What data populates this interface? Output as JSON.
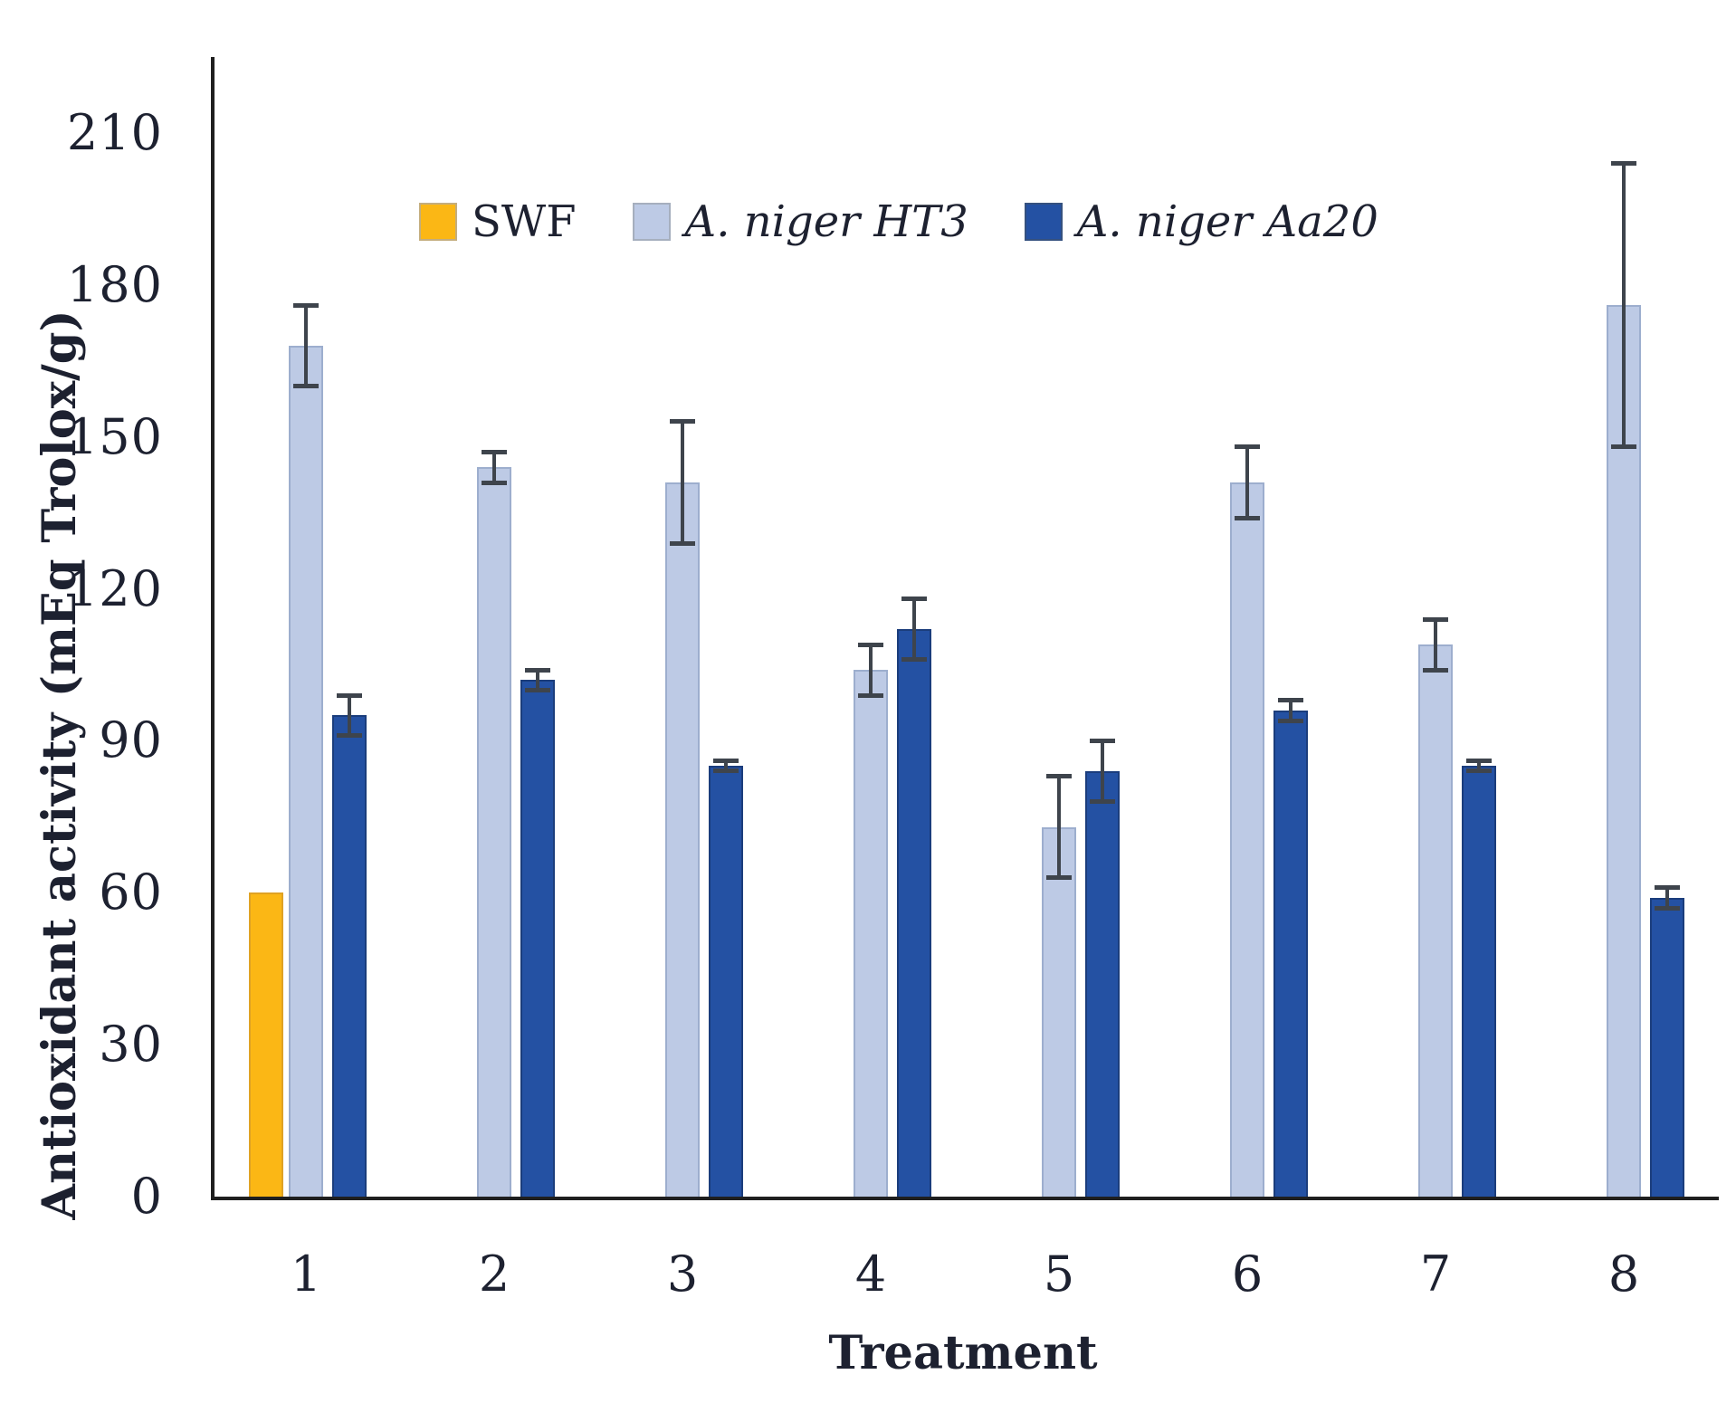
{
  "figure": {
    "y_axis_title": "Antioxidant activity (mEq Trolox/g)",
    "x_axis_title": "Treatment"
  },
  "legend": [
    {
      "label": "SWF",
      "italic": false,
      "color": "#fbb715",
      "swatch_border": "#c3ad7e"
    },
    {
      "label": "A. niger HT3",
      "italic": true,
      "color": "#bdcae5",
      "swatch_border": "#a6afbe"
    },
    {
      "label": "A. niger Aa20",
      "italic": true,
      "color": "#2451a3",
      "swatch_border": "#35517f"
    }
  ],
  "chart_data": {
    "type": "bar",
    "title": "",
    "xlabel": "Treatment",
    "ylabel": "Antioxidant activity (mEq Trolox/g)",
    "categories": [
      "1",
      "2",
      "3",
      "4",
      "5",
      "6",
      "7",
      "8"
    ],
    "y_ticks": [
      0,
      30,
      60,
      90,
      120,
      150,
      180,
      210
    ],
    "ylim": [
      0,
      225
    ],
    "grid": false,
    "legend_position": "top",
    "error_bar_color": "#3e444c",
    "axis_color": "#1f1f1f",
    "text_color": "#1d2130",
    "series": [
      {
        "name": "SWF",
        "color": "#fbb715",
        "border": "#dfa224",
        "values": [
          60,
          null,
          null,
          null,
          null,
          null,
          null,
          null
        ],
        "errors": [
          0,
          0,
          0,
          0,
          0,
          0,
          0,
          0
        ]
      },
      {
        "name": "A. niger HT3",
        "color": "#bdcae5",
        "border": "#9daece",
        "values": [
          168,
          144,
          141,
          104,
          73,
          141,
          109,
          176
        ],
        "errors": [
          8,
          3,
          12,
          5,
          10,
          7,
          5,
          28
        ]
      },
      {
        "name": "A. niger Aa20",
        "color": "#2451a3",
        "border": "#1b3d7c",
        "values": [
          95,
          102,
          85,
          112,
          84,
          96,
          85,
          59
        ],
        "errors": [
          4,
          2,
          1,
          6,
          6,
          2,
          1,
          2
        ]
      }
    ]
  }
}
